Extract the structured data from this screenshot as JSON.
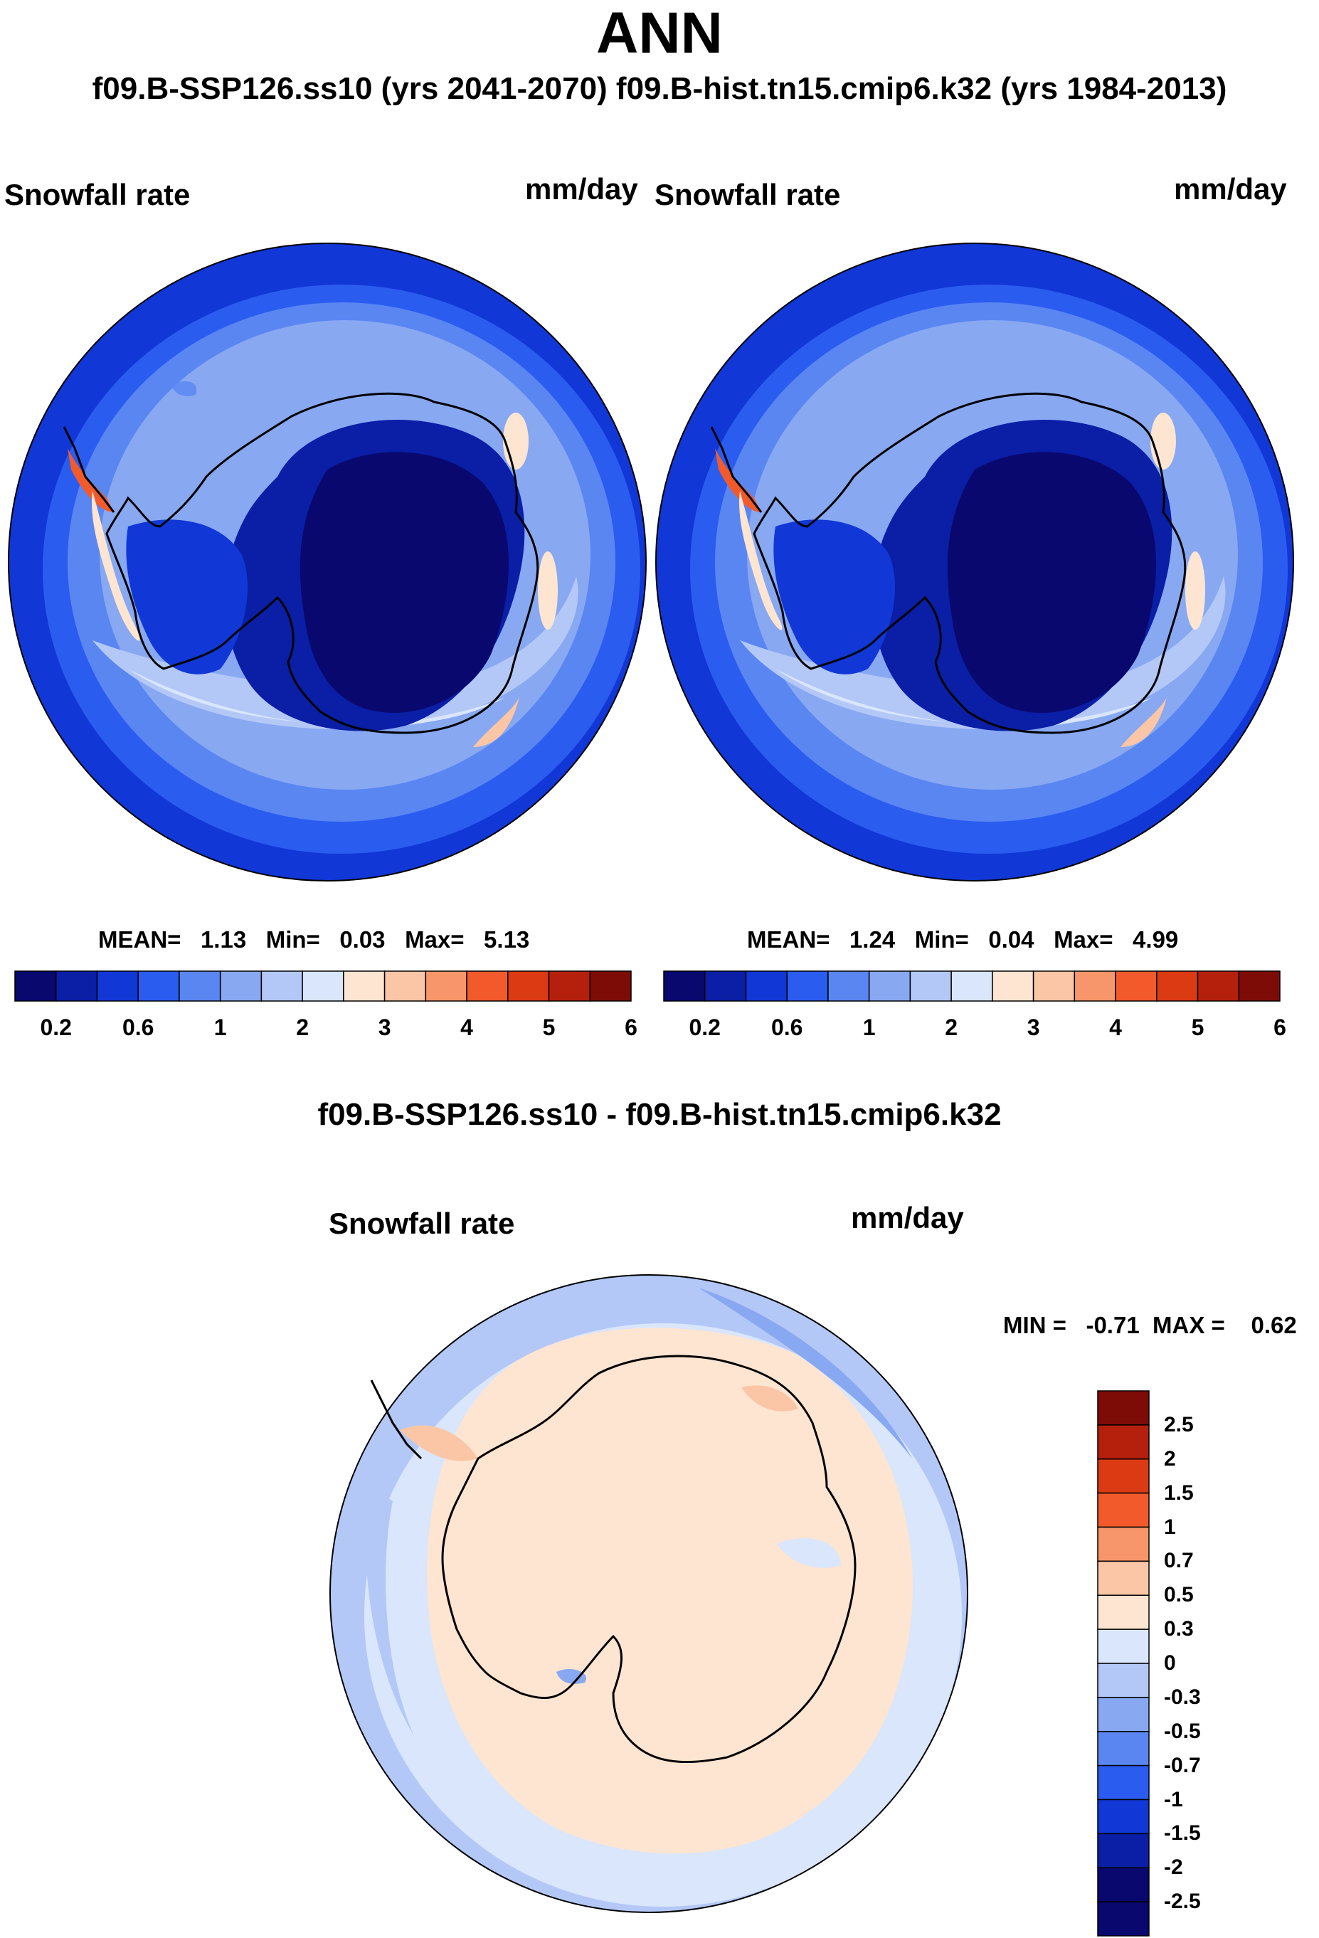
{
  "main_title": "ANN",
  "subtitle": "f09.B-SSP126.ss10 (yrs 2041-2070)  f09.B-hist.tn15.cmip6.k32 (yrs 1984-2013)",
  "diff_title": "f09.B-SSP126.ss10 - f09.B-hist.tn15.cmip6.k32",
  "colors": {
    "abs_scale": [
      "#08086e",
      "#0a1ea6",
      "#1137d6",
      "#2b5cf0",
      "#5a86f2",
      "#88a8f2",
      "#b4c8f7",
      "#d9e6fb",
      "#fde5d2",
      "#fbc6a6",
      "#f7966a",
      "#f25a2c",
      "#dc3a13",
      "#b5200c",
      "#7e0c06"
    ],
    "diff_scale": [
      "#08086e",
      "#0a1ea6",
      "#1137d6",
      "#2b5cf0",
      "#5a86f2",
      "#88a8f2",
      "#b4c8f7",
      "#d9e6fb",
      "#fde5d2",
      "#fbc6a6",
      "#f7966a",
      "#f25a2c",
      "#dc3a13",
      "#b5200c",
      "#7e0c06"
    ]
  },
  "panels": {
    "left": {
      "label": "Snowfall rate",
      "units": "mm/day",
      "mean_label": "MEAN=",
      "mean": "1.13",
      "min_label": "Min=",
      "min": "0.03",
      "max_label": "Max=",
      "max": "5.13"
    },
    "right": {
      "label": "Snowfall rate",
      "units": "mm/day",
      "mean_label": "MEAN=",
      "mean": "1.24",
      "min_label": "Min=",
      "min": "0.04",
      "max_label": "Max=",
      "max": "4.99"
    },
    "diff": {
      "label": "Snowfall rate",
      "units": "mm/day",
      "min_label": "MIN =",
      "min": "-0.71",
      "max_label": "MAX =",
      "max": "0.62"
    }
  },
  "chart_data": [
    {
      "type": "heatmap",
      "projection": "south polar stereographic",
      "title": "f09.B-SSP126.ss10 (yrs 2041-2070)",
      "variable": "Snowfall rate",
      "units": "mm/day",
      "mean": 1.13,
      "min": 0.03,
      "max": 5.13,
      "colorbar_ticks": [
        "0.2",
        "0.6",
        "1",
        "2",
        "3",
        "4",
        "5",
        "6"
      ],
      "colorbar_levels": [
        0.2,
        0.4,
        0.6,
        0.8,
        1,
        1.5,
        2,
        2.5,
        3,
        3.5,
        4,
        4.5,
        5,
        5.5,
        6
      ]
    },
    {
      "type": "heatmap",
      "projection": "south polar stereographic",
      "title": "f09.B-hist.tn15.cmip6.k32 (yrs 1984-2013)",
      "variable": "Snowfall rate",
      "units": "mm/day",
      "mean": 1.24,
      "min": 0.04,
      "max": 4.99,
      "colorbar_ticks": [
        "0.2",
        "0.6",
        "1",
        "2",
        "3",
        "4",
        "5",
        "6"
      ],
      "colorbar_levels": [
        0.2,
        0.4,
        0.6,
        0.8,
        1,
        1.5,
        2,
        2.5,
        3,
        3.5,
        4,
        4.5,
        5,
        5.5,
        6
      ]
    },
    {
      "type": "heatmap",
      "projection": "south polar stereographic",
      "title": "f09.B-SSP126.ss10 - f09.B-hist.tn15.cmip6.k32",
      "variable": "Snowfall rate",
      "units": "mm/day",
      "min": -0.71,
      "max": 0.62,
      "colorbar_ticks": [
        "2.5",
        "2",
        "1.5",
        "1",
        "0.7",
        "0.5",
        "0.3",
        "0",
        "-0.3",
        "-0.5",
        "-0.7",
        "-1",
        "-1.5",
        "-2",
        "-2.5"
      ]
    }
  ]
}
